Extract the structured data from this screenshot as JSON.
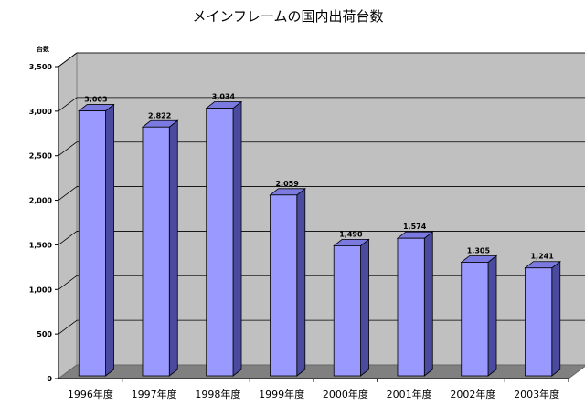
{
  "chart_data": {
    "type": "bar",
    "title": "メインフレームの国内出荷台数",
    "ylabel": "台数",
    "xlabel": "",
    "categories": [
      "1996年度",
      "1997年度",
      "1998年度",
      "1999年度",
      "2000年度",
      "2001年度",
      "2002年度",
      "2003年度"
    ],
    "values": [
      3003,
      2822,
      3034,
      2059,
      1490,
      1574,
      1305,
      1241
    ],
    "value_labels": [
      "3,003",
      "2,822",
      "3,034",
      "2,059",
      "1,490",
      "1,574",
      "1,305",
      "1,241"
    ],
    "ylim": [
      0,
      3500
    ],
    "y_ticks": [
      0,
      500,
      1000,
      1500,
      2000,
      2500,
      3000,
      3500
    ],
    "y_tick_labels": [
      "0",
      "500",
      "1,000",
      "1,500",
      "2,000",
      "2,500",
      "3,000",
      "3,500"
    ],
    "grid": true,
    "legend": "none",
    "three_d": true,
    "colors": {
      "bar_front": "#9999ff",
      "bar_side": "#4a4a9e",
      "bar_top": "#7a7ae0",
      "bar_outline": "#000000",
      "wall": "#c0c0c0",
      "floor": "#808080",
      "gridline": "#000000"
    }
  }
}
